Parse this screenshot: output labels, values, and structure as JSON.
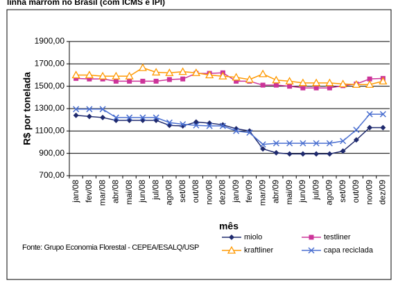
{
  "chart_data": {
    "type": "line",
    "title": "linha marrom no Brasil (com ICMS e IPI)",
    "y_label": "R$ por tonelada",
    "x_label": "mês",
    "source": "Fonte: Grupo Economia Florestal - CEPEA/ESALQ/USP",
    "categories": [
      "jan/08",
      "fev/08",
      "mar/08",
      "abr/08",
      "mai/08",
      "jun/08",
      "jul/08",
      "ago/08",
      "set/08",
      "out/08",
      "nov/08",
      "dez/08",
      "jan/09",
      "fev/09",
      "mar/09",
      "abr/09",
      "mai/09",
      "jun/09",
      "jul/09",
      "ago/09",
      "set/09",
      "out/09",
      "nov/09",
      "dez/09"
    ],
    "series": [
      {
        "name": "miolo",
        "color": "#1f2a6e",
        "marker": "diamond",
        "values": [
          1240,
          1230,
          1220,
          1195,
          1195,
          1195,
          1195,
          1150,
          1145,
          1180,
          1170,
          1155,
          1120,
          1100,
          940,
          905,
          895,
          895,
          895,
          895,
          920,
          1020,
          1130,
          1130
        ]
      },
      {
        "name": "testliner",
        "color": "#cc3399",
        "marker": "square",
        "values": [
          1570,
          1565,
          1565,
          1545,
          1545,
          1545,
          1545,
          1560,
          1565,
          1615,
          1615,
          1620,
          1545,
          1545,
          1510,
          1510,
          1500,
          1485,
          1485,
          1485,
          1505,
          1520,
          1565,
          1570
        ]
      },
      {
        "name": "kraftliner",
        "color": "#ff9900",
        "marker": "triangle",
        "values": [
          1600,
          1600,
          1590,
          1590,
          1590,
          1665,
          1625,
          1620,
          1630,
          1620,
          1600,
          1590,
          1580,
          1560,
          1610,
          1555,
          1545,
          1530,
          1530,
          1530,
          1520,
          1515,
          1515,
          1545
        ]
      },
      {
        "name": "capa reciclada",
        "color": "#4a6fd0",
        "marker": "x",
        "values": [
          1295,
          1295,
          1295,
          1220,
          1220,
          1220,
          1220,
          1175,
          1160,
          1150,
          1145,
          1145,
          1100,
          1085,
          980,
          990,
          990,
          990,
          990,
          990,
          1010,
          1110,
          1250,
          1250
        ]
      }
    ],
    "ylim": [
      700,
      1900
    ],
    "yticks": [
      {
        "value": 700,
        "label": "700,00"
      },
      {
        "value": 900,
        "label": "900,00"
      },
      {
        "value": 1100,
        "label": "1100,00"
      },
      {
        "value": 1300,
        "label": "1300,00"
      },
      {
        "value": 1500,
        "label": "1500,00"
      },
      {
        "value": 1700,
        "label": "1700,00"
      },
      {
        "value": 1900,
        "label": "1900,00"
      }
    ],
    "grid": true
  }
}
